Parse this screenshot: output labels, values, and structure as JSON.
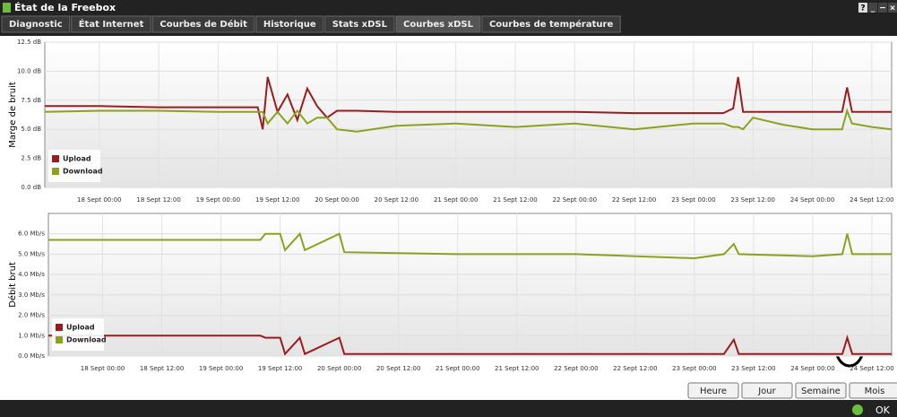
{
  "window": {
    "title": "État de la Freebox",
    "controls": [
      "?",
      "_",
      "−",
      "×"
    ]
  },
  "tabs": [
    "Diagnostic",
    "État Internet",
    "Courbes de Débit",
    "Historique",
    "Stats xDSL",
    "Courbes xDSL",
    "Courbes de température"
  ],
  "active_tab": 5,
  "buttons": [
    "Heure",
    "Jour",
    "Semaine",
    "Mois"
  ],
  "footer": {
    "ok": "OK"
  },
  "chart_data": [
    {
      "type": "line",
      "ylabel": "Marge de bruit",
      "xlim": [
        "17 Sept 13:00",
        "24 Sept 16:00"
      ],
      "ylim": [
        0,
        12.5
      ],
      "yticks": [
        {
          "value": 0,
          "label": "0.0 dB"
        },
        {
          "value": 2.5,
          "label": "2.5 dB"
        },
        {
          "value": 5,
          "label": "5.0 dB"
        },
        {
          "value": 7.5,
          "label": "7.5 dB"
        },
        {
          "value": 10,
          "label": "10.0 dB"
        },
        {
          "value": 12.5,
          "label": "12.5 dB"
        }
      ],
      "xticks": [
        "18 Sept 00:00",
        "18 Sept 12:00",
        "19 Sept 00:00",
        "19 Sept 12:00",
        "20 Sept 00:00",
        "20 Sept 12:00",
        "21 Sept 00:00",
        "21 Sept 12:00",
        "22 Sept 00:00",
        "22 Sept 12:00",
        "23 Sept 00:00",
        "23 Sept 12:00",
        "24 Sept 00:00",
        "24 Sept 12:00"
      ],
      "grid": true,
      "legend": "lower left",
      "x": [
        "17 Sept 13:00",
        "18 Sept 00:00",
        "18 Sept 12:00",
        "19 Sept 00:00",
        "19 Sept 08:00",
        "19 Sept 09:00",
        "19 Sept 10:00",
        "19 Sept 12:00",
        "19 Sept 14:00",
        "19 Sept 16:00",
        "19 Sept 18:00",
        "19 Sept 20:00",
        "19 Sept 22:00",
        "20 Sept 00:00",
        "20 Sept 04:00",
        "20 Sept 12:00",
        "21 Sept 00:00",
        "21 Sept 12:00",
        "22 Sept 00:00",
        "22 Sept 12:00",
        "23 Sept 00:00",
        "23 Sept 06:00",
        "23 Sept 08:00",
        "23 Sept 09:00",
        "23 Sept 10:00",
        "23 Sept 12:00",
        "23 Sept 18:00",
        "24 Sept 00:00",
        "24 Sept 06:00",
        "24 Sept 07:00",
        "24 Sept 08:00",
        "24 Sept 12:00",
        "24 Sept 16:00"
      ],
      "series": [
        {
          "name": "Upload",
          "color": "#9b1c1f",
          "values": [
            7.0,
            7.0,
            6.9,
            6.9,
            6.9,
            5.0,
            9.5,
            6.5,
            8.0,
            5.8,
            8.5,
            7.0,
            6.0,
            6.6,
            6.6,
            6.5,
            6.5,
            6.5,
            6.5,
            6.4,
            6.4,
            6.4,
            6.8,
            9.5,
            6.5,
            6.5,
            6.5,
            6.5,
            6.5,
            8.6,
            6.5,
            6.5,
            6.5
          ]
        },
        {
          "name": "Download",
          "color": "#8ca21e",
          "values": [
            6.5,
            6.6,
            6.6,
            6.5,
            6.5,
            6.5,
            5.5,
            6.5,
            5.5,
            6.6,
            5.5,
            6.0,
            6.0,
            5.0,
            4.8,
            5.3,
            5.5,
            5.2,
            5.5,
            5.0,
            5.5,
            5.5,
            5.2,
            5.2,
            5.0,
            6.0,
            5.4,
            5.0,
            5.0,
            6.6,
            5.5,
            5.2,
            5.0
          ]
        }
      ]
    },
    {
      "type": "line",
      "ylabel": "Débit brut",
      "xlim": [
        "17 Sept 13:00",
        "24 Sept 16:00"
      ],
      "ylim": [
        0,
        7
      ],
      "yticks": [
        {
          "value": 0,
          "label": "0.0 Mb/s"
        },
        {
          "value": 1,
          "label": "1.0 Mb/s"
        },
        {
          "value": 2,
          "label": "2.0 Mb/s"
        },
        {
          "value": 3,
          "label": "3.0 Mb/s"
        },
        {
          "value": 4,
          "label": "4.0 Mb/s"
        },
        {
          "value": 5,
          "label": "5.0 Mb/s"
        },
        {
          "value": 6,
          "label": "6.0 Mb/s"
        }
      ],
      "xticks": [
        "18 Sept 00:00",
        "18 Sept 12:00",
        "19 Sept 00:00",
        "19 Sept 12:00",
        "20 Sept 00:00",
        "20 Sept 12:00",
        "21 Sept 00:00",
        "21 Sept 12:00",
        "22 Sept 00:00",
        "22 Sept 12:00",
        "23 Sept 00:00",
        "23 Sept 12:00",
        "24 Sept 00:00",
        "24 Sept 12:00"
      ],
      "grid": true,
      "legend": "lower left",
      "x": [
        "17 Sept 13:00",
        "18 Sept 12:00",
        "19 Sept 08:00",
        "19 Sept 09:00",
        "19 Sept 12:00",
        "19 Sept 13:00",
        "19 Sept 16:00",
        "19 Sept 17:00",
        "20 Sept 00:00",
        "20 Sept 01:00",
        "21 Sept 00:00",
        "22 Sept 00:00",
        "23 Sept 00:00",
        "23 Sept 06:00",
        "23 Sept 08:00",
        "23 Sept 09:00",
        "24 Sept 00:00",
        "24 Sept 06:00",
        "24 Sept 07:00",
        "24 Sept 08:00",
        "24 Sept 16:00"
      ],
      "series": [
        {
          "name": "Upload",
          "color": "#9b1c1f",
          "values": [
            1.0,
            1.0,
            1.0,
            0.9,
            0.9,
            0.1,
            0.9,
            0.1,
            0.9,
            0.1,
            0.1,
            0.1,
            0.1,
            0.1,
            0.8,
            0.1,
            0.1,
            0.1,
            0.9,
            0.1,
            0.1
          ]
        },
        {
          "name": "Download",
          "color": "#8ca21e",
          "values": [
            5.7,
            5.7,
            5.7,
            6.0,
            6.0,
            5.2,
            6.0,
            5.2,
            6.0,
            5.1,
            5.0,
            5.0,
            4.8,
            5.0,
            5.5,
            5.0,
            4.9,
            5.0,
            6.0,
            5.0,
            5.0
          ]
        }
      ]
    }
  ]
}
